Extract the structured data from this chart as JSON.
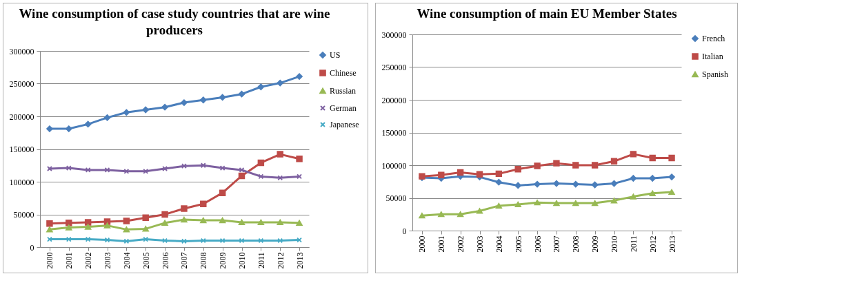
{
  "chart_data": [
    {
      "type": "line",
      "title": "Wine consumption of case study countries that are wine producers",
      "categories": [
        "2000",
        "2001",
        "2002",
        "2003",
        "2004",
        "2005",
        "2006",
        "2007",
        "2008",
        "2009",
        "2010",
        "2011",
        "2012",
        "2013"
      ],
      "ylim": [
        0,
        300000
      ],
      "yticks": [
        0,
        50000,
        100000,
        150000,
        200000,
        250000,
        300000
      ],
      "grid": "y",
      "legend": "right",
      "series": [
        {
          "name": "US",
          "color": "#4a7ebb",
          "marker": "diamond",
          "values": [
            181000,
            181000,
            188000,
            198000,
            206000,
            210000,
            214000,
            221000,
            225000,
            229000,
            234000,
            245000,
            251000,
            261000
          ]
        },
        {
          "name": "Chinese",
          "color": "#be4b48",
          "marker": "square",
          "values": [
            36000,
            37000,
            38000,
            39000,
            40000,
            45000,
            50000,
            59000,
            66000,
            83000,
            109000,
            129000,
            142000,
            135000
          ]
        },
        {
          "name": "Russian",
          "color": "#98b954",
          "marker": "triangle",
          "values": [
            27000,
            30000,
            31000,
            33000,
            27000,
            28000,
            37000,
            42000,
            41000,
            41000,
            38000,
            38000,
            38000,
            37000
          ]
        },
        {
          "name": "German",
          "color": "#7d60a0",
          "marker": "cross",
          "values": [
            120000,
            121000,
            118000,
            118000,
            116000,
            116000,
            120000,
            124000,
            125000,
            121000,
            118000,
            108000,
            106000,
            108000
          ]
        },
        {
          "name": "Japanese",
          "color": "#46aac5",
          "marker": "cross",
          "values": [
            12000,
            12000,
            12000,
            11000,
            9000,
            12000,
            10000,
            9000,
            10000,
            10000,
            10000,
            10000,
            10000,
            11000
          ]
        }
      ]
    },
    {
      "type": "line",
      "title": "Wine consumption of main EU Member States",
      "categories": [
        "2000",
        "2001",
        "2002",
        "2003",
        "2004",
        "2005",
        "2006",
        "2007",
        "2008",
        "2009",
        "2010",
        "2011",
        "2012",
        "2013"
      ],
      "ylim": [
        0,
        300000
      ],
      "yticks": [
        0,
        50000,
        100000,
        150000,
        200000,
        250000,
        300000
      ],
      "grid": "y",
      "legend": "right",
      "series": [
        {
          "name": "French",
          "color": "#4a7ebb",
          "marker": "diamond",
          "values": [
            81000,
            80000,
            83000,
            82000,
            74000,
            69000,
            71000,
            72000,
            71000,
            70000,
            72000,
            80000,
            80000,
            82000
          ]
        },
        {
          "name": "Italian",
          "color": "#be4b48",
          "marker": "square",
          "values": [
            83000,
            85000,
            89000,
            86000,
            87000,
            94000,
            99000,
            103000,
            100000,
            100000,
            106000,
            117000,
            111000,
            111000
          ]
        },
        {
          "name": "Spanish",
          "color": "#98b954",
          "marker": "triangle",
          "values": [
            23000,
            25000,
            25000,
            30000,
            38000,
            40000,
            43000,
            42000,
            42000,
            42000,
            46000,
            52000,
            57000,
            59000
          ]
        }
      ]
    }
  ]
}
